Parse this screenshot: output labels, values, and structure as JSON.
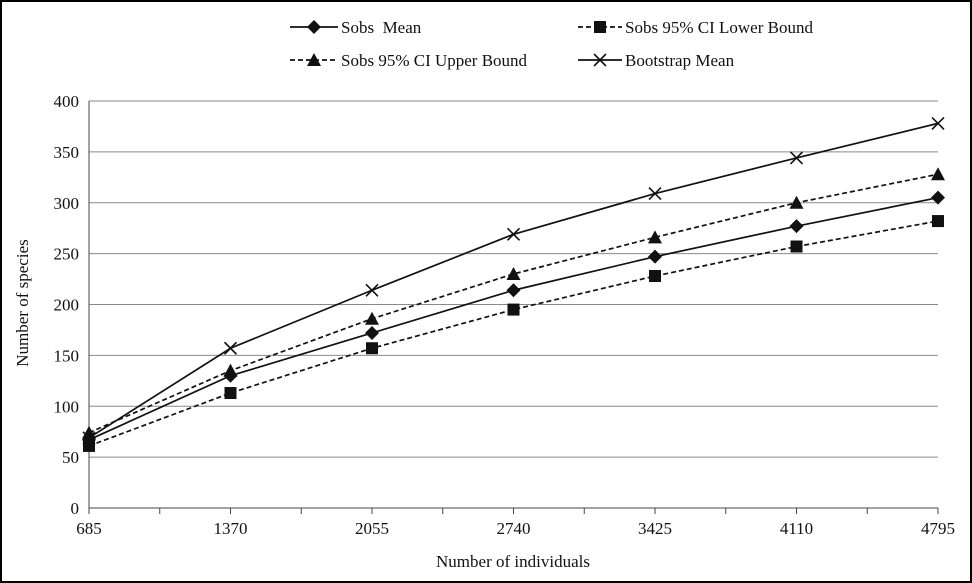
{
  "chart_data": {
    "type": "line",
    "xlabel": "Number of individuals",
    "ylabel": "Number of species",
    "x": [
      685,
      1370,
      2055,
      2740,
      3425,
      4110,
      4795
    ],
    "xlim": [
      685,
      4795
    ],
    "ylim": [
      0,
      400
    ],
    "yticks": [
      0,
      50,
      100,
      150,
      200,
      250,
      300,
      350,
      400
    ],
    "grid": "horizontal",
    "legend_position": "top",
    "series": [
      {
        "name": "Sobs  Mean",
        "marker": "diamond",
        "line": "solid",
        "values": [
          67,
          130,
          172,
          214,
          247,
          277,
          305
        ]
      },
      {
        "name": "Sobs 95% CI Lower Bound",
        "marker": "square",
        "line": "dashed",
        "values": [
          61,
          113,
          157,
          195,
          228,
          257,
          282
        ]
      },
      {
        "name": "Sobs 95% CI Upper Bound",
        "marker": "triangle",
        "line": "dashed",
        "values": [
          74,
          135,
          186,
          230,
          266,
          300,
          328
        ]
      },
      {
        "name": "Bootstrap Mean",
        "marker": "x",
        "line": "solid",
        "values": [
          69,
          157,
          214,
          269,
          309,
          344,
          378
        ]
      }
    ]
  }
}
